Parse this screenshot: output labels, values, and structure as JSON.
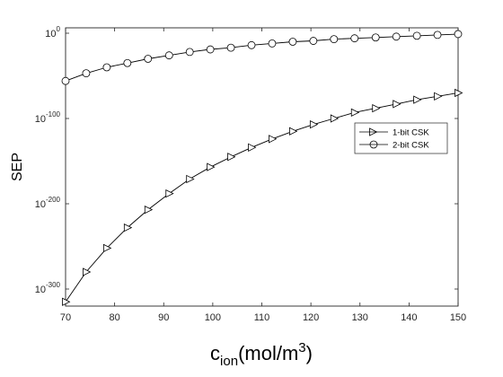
{
  "chart_data": {
    "type": "line",
    "xlabel": "c",
    "xlabel_sub": "ion",
    "xlabel_rest": "(mol/m",
    "xlabel_sup": "3",
    "xlabel_close": ")",
    "ylabel": "SEP",
    "y_scale": "log",
    "xlim": [
      70,
      150
    ],
    "ylim_log10": [
      -320,
      0
    ],
    "x_ticks": [
      70,
      80,
      90,
      100,
      110,
      120,
      130,
      140,
      150
    ],
    "y_ticks": [
      {
        "base": "10",
        "exp": "0",
        "log10": 0
      },
      {
        "base": "10",
        "exp": "-100",
        "log10": -100
      },
      {
        "base": "10",
        "exp": "-200",
        "log10": -200
      },
      {
        "base": "10",
        "exp": "-300",
        "log10": -300
      }
    ],
    "grid": false,
    "legend_position": "right",
    "x": [
      70,
      74.2,
      78.4,
      82.6,
      86.8,
      91.1,
      95.3,
      99.5,
      103.7,
      107.9,
      112.1,
      116.3,
      120.5,
      124.7,
      128.9,
      133.2,
      137.4,
      141.6,
      145.8,
      150
    ],
    "series": [
      {
        "name": "1-bit CSK",
        "marker": "triangle-right",
        "log10_values": [
          -315,
          -280,
          -252,
          -228,
          -207,
          -188,
          -171,
          -157,
          -145,
          -134,
          -124,
          -115,
          -107,
          -100,
          -93,
          -88,
          -83,
          -78,
          -74,
          -70
        ]
      },
      {
        "name": "2-bit CSK",
        "marker": "circle",
        "log10_values": [
          -56,
          -47,
          -40,
          -35,
          -30,
          -26,
          -22,
          -19,
          -17,
          -14,
          -12,
          -10,
          -9,
          -7,
          -6,
          -5,
          -4,
          -3,
          -2,
          -1
        ]
      }
    ]
  }
}
